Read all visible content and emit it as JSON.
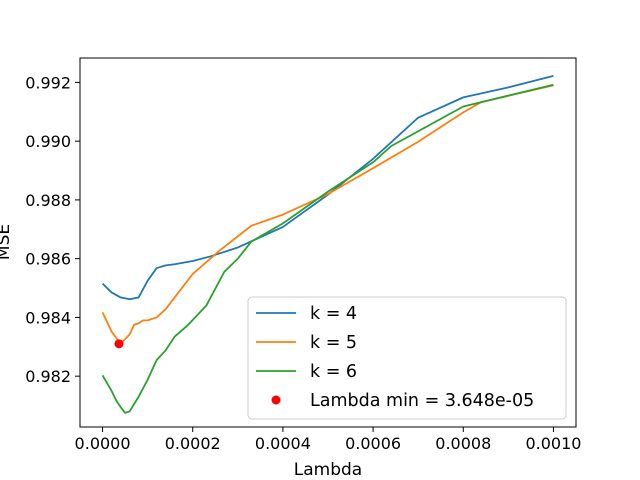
{
  "chart_data": {
    "type": "line",
    "xlabel": "Lambda",
    "ylabel": "MSE",
    "xlim": [
      -5e-05,
      0.00105
    ],
    "ylim": [
      0.98027,
      0.99283
    ],
    "xticks": [
      0.0,
      0.0002,
      0.0004,
      0.0006,
      0.0008,
      0.001
    ],
    "xtick_labels": [
      "0.0000",
      "0.0002",
      "0.0004",
      "0.0006",
      "0.0008",
      "0.0010"
    ],
    "yticks": [
      0.982,
      0.984,
      0.986,
      0.988,
      0.99,
      0.992
    ],
    "ytick_labels": [
      "0.982",
      "0.984",
      "0.986",
      "0.988",
      "0.990",
      "0.992"
    ],
    "grid": false,
    "legend_position": "lower-right",
    "series": [
      {
        "name": "k = 4",
        "color": "#1f77b4",
        "x": [
          0.0,
          2e-05,
          4e-05,
          6e-05,
          8e-05,
          0.0001,
          0.00012,
          0.00014,
          0.00016,
          0.0002,
          0.00024,
          0.0003,
          0.0004,
          0.0005,
          0.0006,
          0.0007,
          0.0008,
          0.0009,
          0.001
        ],
        "y": [
          0.98515,
          0.98485,
          0.98468,
          0.98462,
          0.98468,
          0.98525,
          0.98568,
          0.98577,
          0.98581,
          0.98592,
          0.98608,
          0.98638,
          0.98708,
          0.98818,
          0.9894,
          0.9908,
          0.99149,
          0.99183,
          0.99222
        ]
      },
      {
        "name": "k = 5",
        "color": "#ff7f0e",
        "x": [
          0.0,
          2e-05,
          4e-05,
          6e-05,
          7e-05,
          8e-05,
          9e-05,
          0.0001,
          0.00012,
          0.00014,
          0.00016,
          0.0002,
          0.00026,
          0.00033,
          0.0004,
          0.0005,
          0.0006,
          0.0007,
          0.0008,
          0.00084,
          0.001
        ],
        "y": [
          0.98417,
          0.98352,
          0.9831,
          0.98342,
          0.98375,
          0.9838,
          0.9839,
          0.9839,
          0.984,
          0.98428,
          0.98468,
          0.98548,
          0.98628,
          0.98712,
          0.9875,
          0.9882,
          0.98908,
          0.98998,
          0.99098,
          0.99133,
          0.9919
        ]
      },
      {
        "name": "k = 6",
        "color": "#2ca02c",
        "x": [
          0.0,
          2e-05,
          3e-05,
          4e-05,
          5e-05,
          6e-05,
          8e-05,
          0.0001,
          0.00012,
          0.00014,
          0.00016,
          0.00019,
          0.00023,
          0.00027,
          0.0003,
          0.00033,
          0.0004,
          0.0005,
          0.0006,
          0.00064,
          0.0008,
          0.001
        ],
        "y": [
          0.98203,
          0.9815,
          0.98118,
          0.98095,
          0.98075,
          0.9808,
          0.9813,
          0.98188,
          0.98255,
          0.98288,
          0.98335,
          0.98375,
          0.9844,
          0.98555,
          0.986,
          0.98658,
          0.9872,
          0.98828,
          0.98928,
          0.98983,
          0.99118,
          0.99192
        ]
      }
    ],
    "highlight_point": {
      "name": "Lambda min = 3.648e-05",
      "color": "#ff0000",
      "x": 3.648e-05,
      "y": 0.9831
    }
  }
}
